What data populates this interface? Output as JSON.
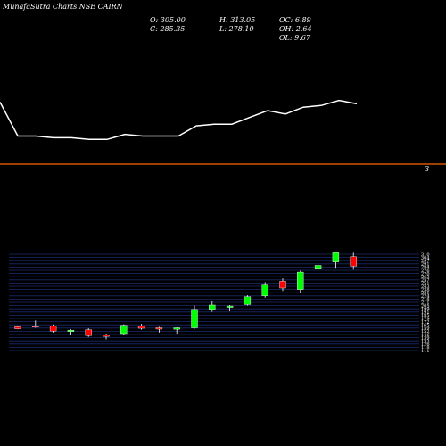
{
  "header": {
    "title": "MunafaSutra Charts NSE CAIRN",
    "open_label": "O: 305.00",
    "close_label": "C: 285.35",
    "high_label": "H: 313.05",
    "low_label": "L: 278.10",
    "oc_label": "OC: 6.89",
    "oh_label": "OH: 2.64",
    "ol_label": "OL: 9.67"
  },
  "divider_label": "3",
  "colors": {
    "background": "#000000",
    "line": "#ffffff",
    "divider": "#ff6600",
    "grid": "#1a2a6c",
    "up": "#00ff00",
    "down": "#ff0000"
  },
  "chart_data": [
    {
      "type": "line",
      "values": [
        250,
        230,
        230,
        229,
        229,
        228,
        228,
        231,
        230,
        230,
        230,
        236,
        237,
        237,
        241,
        245,
        243,
        247,
        248,
        251,
        249
      ]
    },
    {
      "type": "candlestick",
      "y_ticks": [
        "310",
        "304",
        "297",
        "291",
        "284",
        "276",
        "270",
        "263",
        "257",
        "251",
        "243",
        "238",
        "231",
        "224",
        "218",
        "211",
        "205",
        "199",
        "191",
        "185",
        "179",
        "172",
        "165",
        "159",
        "152",
        "146",
        "139",
        "133",
        "126",
        "118",
        "111"
      ],
      "candles": [
        {
          "o": 160,
          "h": 162,
          "l": 155,
          "c": 156
        },
        {
          "o": 162,
          "h": 173,
          "l": 158,
          "c": 161
        },
        {
          "o": 162,
          "h": 165,
          "l": 148,
          "c": 151
        },
        {
          "o": 152,
          "h": 155,
          "l": 144,
          "c": 153
        },
        {
          "o": 154,
          "h": 157,
          "l": 139,
          "c": 142
        },
        {
          "o": 143,
          "h": 146,
          "l": 134,
          "c": 141
        },
        {
          "o": 146,
          "h": 165,
          "l": 144,
          "c": 163
        },
        {
          "o": 161,
          "h": 166,
          "l": 154,
          "c": 157
        },
        {
          "o": 158,
          "h": 160,
          "l": 148,
          "c": 156
        },
        {
          "o": 155,
          "h": 159,
          "l": 146,
          "c": 158
        },
        {
          "o": 158,
          "h": 204,
          "l": 156,
          "c": 196
        },
        {
          "o": 196,
          "h": 213,
          "l": 191,
          "c": 205
        },
        {
          "o": 203,
          "h": 205,
          "l": 192,
          "c": 203
        },
        {
          "o": 206,
          "h": 225,
          "l": 204,
          "c": 222
        },
        {
          "o": 224,
          "h": 252,
          "l": 220,
          "c": 248
        },
        {
          "o": 254,
          "h": 260,
          "l": 234,
          "c": 240
        },
        {
          "o": 237,
          "h": 276,
          "l": 230,
          "c": 273
        },
        {
          "o": 279,
          "h": 296,
          "l": 272,
          "c": 287
        },
        {
          "o": 294,
          "h": 313,
          "l": 280,
          "c": 313
        },
        {
          "o": 305,
          "h": 313.05,
          "l": 278.1,
          "c": 285.35
        }
      ]
    }
  ]
}
